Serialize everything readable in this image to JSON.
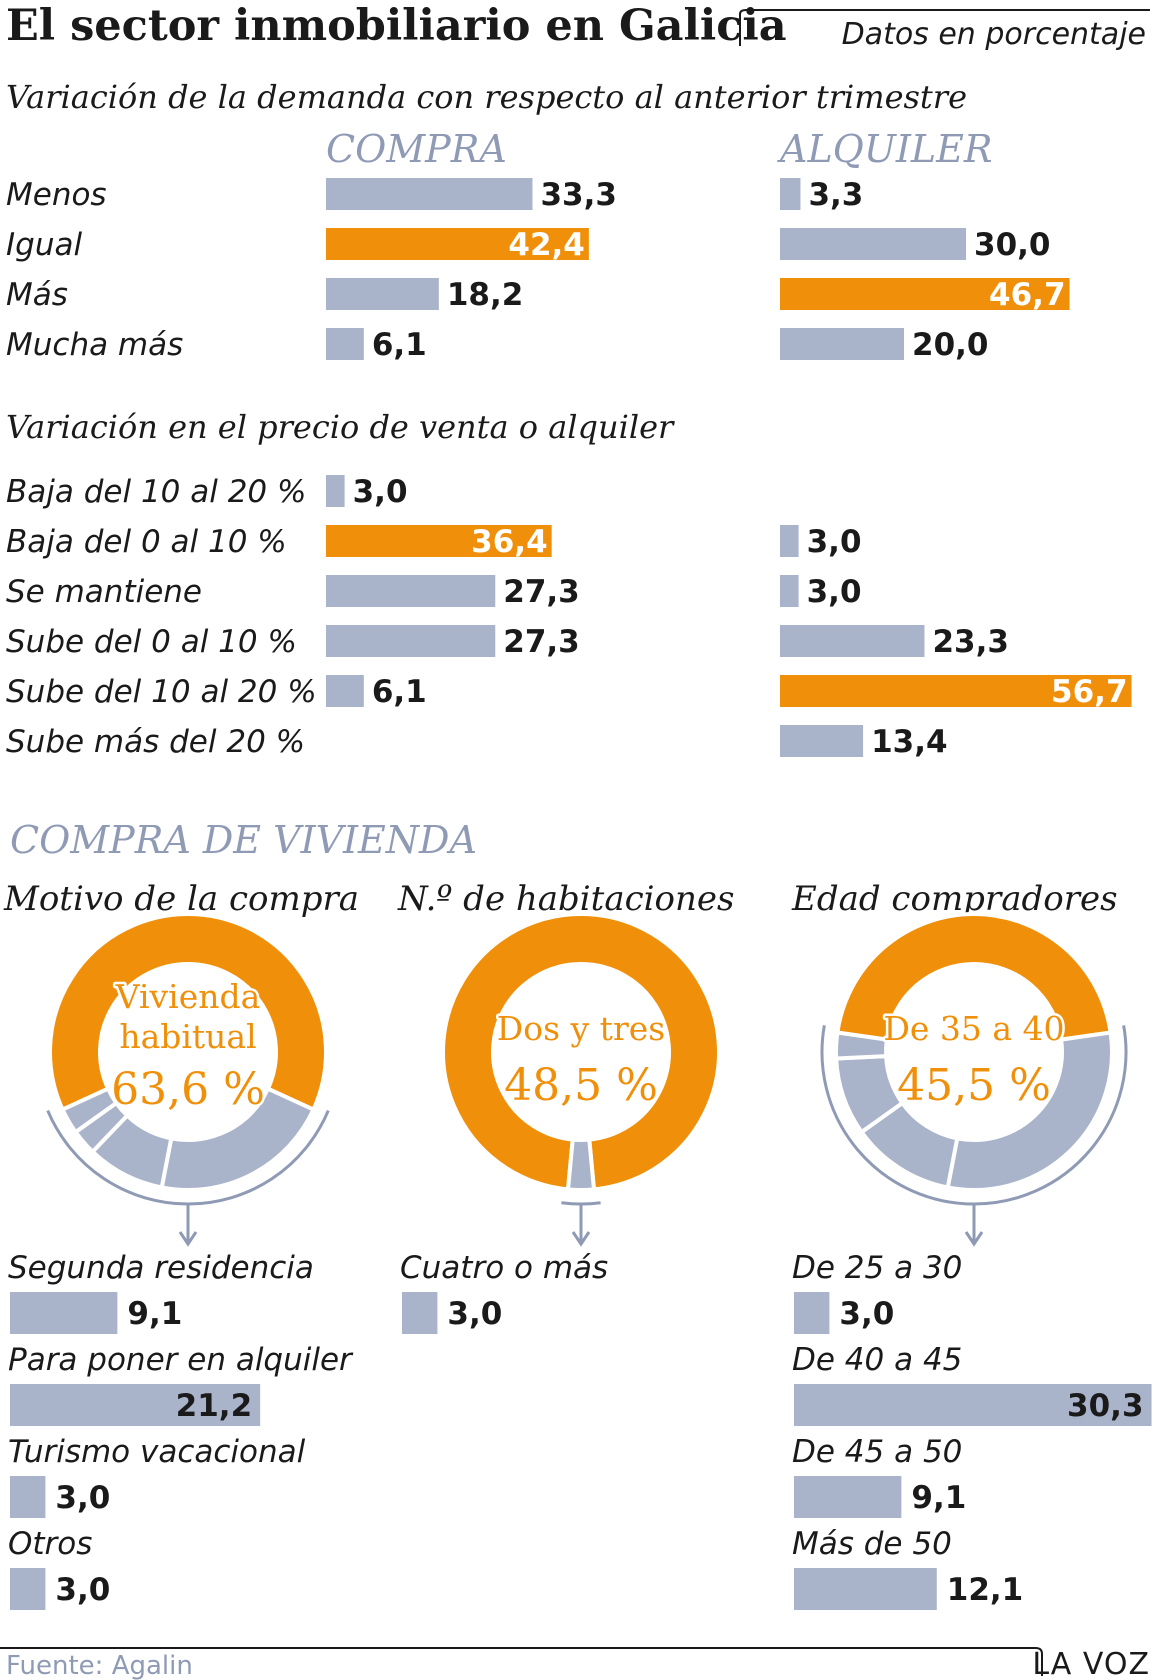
{
  "title": "El sector inmobiliario en Galicia",
  "units_note": "Datos en porcentaje",
  "source": "Fuente: Agalin",
  "brand": "LA VOZ",
  "colors": {
    "highlight": "#f0900a",
    "bar": "#a9b4cb",
    "label_blue": "#8f9ab5",
    "text": "#1a1a1a"
  },
  "chart_data": [
    {
      "type": "bar",
      "title": "Variación de la demanda con respecto al anterior trimestre",
      "categories": [
        "Menos",
        "Igual",
        "Más",
        "Mucha más"
      ],
      "series": [
        {
          "name": "COMPRA",
          "values": [
            33.3,
            42.4,
            18.2,
            6.1
          ],
          "labels": [
            "33,3",
            "42,4",
            "18,2",
            "6,1"
          ],
          "highlight": 1
        },
        {
          "name": "ALQUILER",
          "values": [
            3.3,
            30.0,
            46.7,
            20.0
          ],
          "labels": [
            "3,3",
            "30,0",
            "46,7",
            "20,0"
          ],
          "highlight": 2
        }
      ]
    },
    {
      "type": "bar",
      "title": "Variación en el precio de venta o alquiler",
      "categories": [
        "Baja del 10 al 20 %",
        "Baja del 0 al 10 %",
        "Se mantiene",
        "Sube del 0 al 10 %",
        "Sube del 10 al 20 %",
        "Sube más del 20 %"
      ],
      "series": [
        {
          "name": "COMPRA",
          "values": [
            3.0,
            36.4,
            27.3,
            27.3,
            6.1,
            null
          ],
          "labels": [
            "3,0",
            "36,4",
            "27,3",
            "27,3",
            "6,1",
            ""
          ],
          "highlight": 1
        },
        {
          "name": "ALQUILER",
          "values": [
            null,
            3.0,
            3.0,
            23.3,
            56.7,
            13.4
          ],
          "labels": [
            "",
            "3,0",
            "3,0",
            "23,3",
            "56,7",
            "13,4"
          ],
          "highlight": 4
        }
      ]
    },
    {
      "type": "pie",
      "section": "COMPRA DE VIVIENDA",
      "title": "Motivo de la compra",
      "main": {
        "label_line1": "Vivienda",
        "label_line2": "habitual",
        "value_label": "63,6 %",
        "value": 63.6
      },
      "others": [
        {
          "label": "Segunda residencia",
          "value": 9.1,
          "value_label": "9,1"
        },
        {
          "label": "Para poner en alquiler",
          "value": 21.2,
          "value_label": "21,2"
        },
        {
          "label": "Turismo vacacional",
          "value": 3.0,
          "value_label": "3,0"
        },
        {
          "label": "Otros",
          "value": 3.0,
          "value_label": "3,0"
        }
      ]
    },
    {
      "type": "pie",
      "title": "N.º de habitaciones",
      "main": {
        "label_line1": "Dos y tres",
        "label_line2": "",
        "value_label": "48,5 %",
        "value": 48.5
      },
      "others": [
        {
          "label": "Cuatro o más",
          "value": 3.0,
          "value_label": "3,0"
        }
      ]
    },
    {
      "type": "pie",
      "title": "Edad compradores",
      "main": {
        "label_line1": "De 35 a 40",
        "label_line2": "",
        "value_label": "45,5 %",
        "value": 45.5
      },
      "others": [
        {
          "label": "De 25 a 30",
          "value": 3.0,
          "value_label": "3,0"
        },
        {
          "label": "De 40 a 45",
          "value": 30.3,
          "value_label": "30,3"
        },
        {
          "label": "De 45 a 50",
          "value": 9.1,
          "value_label": "9,1"
        },
        {
          "label": "Más de 50",
          "value": 12.1,
          "value_label": "12,1"
        }
      ]
    }
  ]
}
